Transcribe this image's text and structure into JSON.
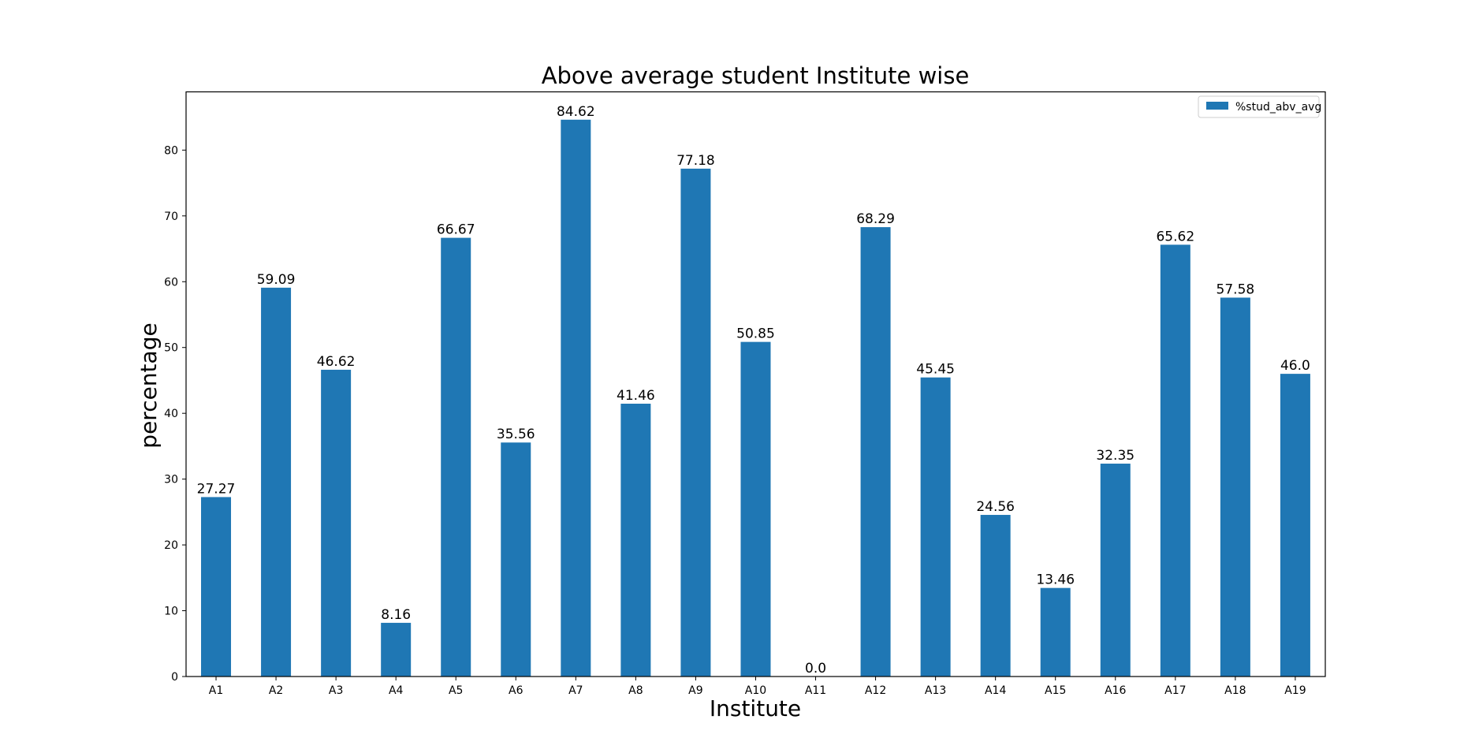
{
  "chart_data": {
    "type": "bar",
    "title": "Above average student Institute wise",
    "xlabel": "Institute",
    "ylabel": "percentage",
    "categories": [
      "A1",
      "A2",
      "A3",
      "A4",
      "A5",
      "A6",
      "A7",
      "A8",
      "A9",
      "A10",
      "A11",
      "A12",
      "A13",
      "A14",
      "A15",
      "A16",
      "A17",
      "A18",
      "A19"
    ],
    "series": [
      {
        "name": "%stud_abv_avg",
        "values": [
          27.27,
          59.09,
          46.62,
          8.16,
          66.67,
          35.56,
          84.62,
          41.46,
          77.18,
          50.85,
          0.0,
          68.29,
          45.45,
          24.56,
          13.46,
          32.35,
          65.62,
          57.58,
          46.0
        ],
        "value_labels": [
          "27.27",
          "59.09",
          "46.62",
          "8.16",
          "66.67",
          "35.56",
          "84.62",
          "41.46",
          "77.18",
          "50.85",
          "0.0",
          "68.29",
          "45.45",
          "24.56",
          "13.46",
          "32.35",
          "65.62",
          "57.58",
          "46.0"
        ],
        "color": "#1f77b4"
      }
    ],
    "ylim": [
      0,
      88.85
    ],
    "yticks": [
      0,
      10,
      20,
      30,
      40,
      50,
      60,
      70,
      80
    ],
    "grid": false,
    "legend": "top-right"
  }
}
